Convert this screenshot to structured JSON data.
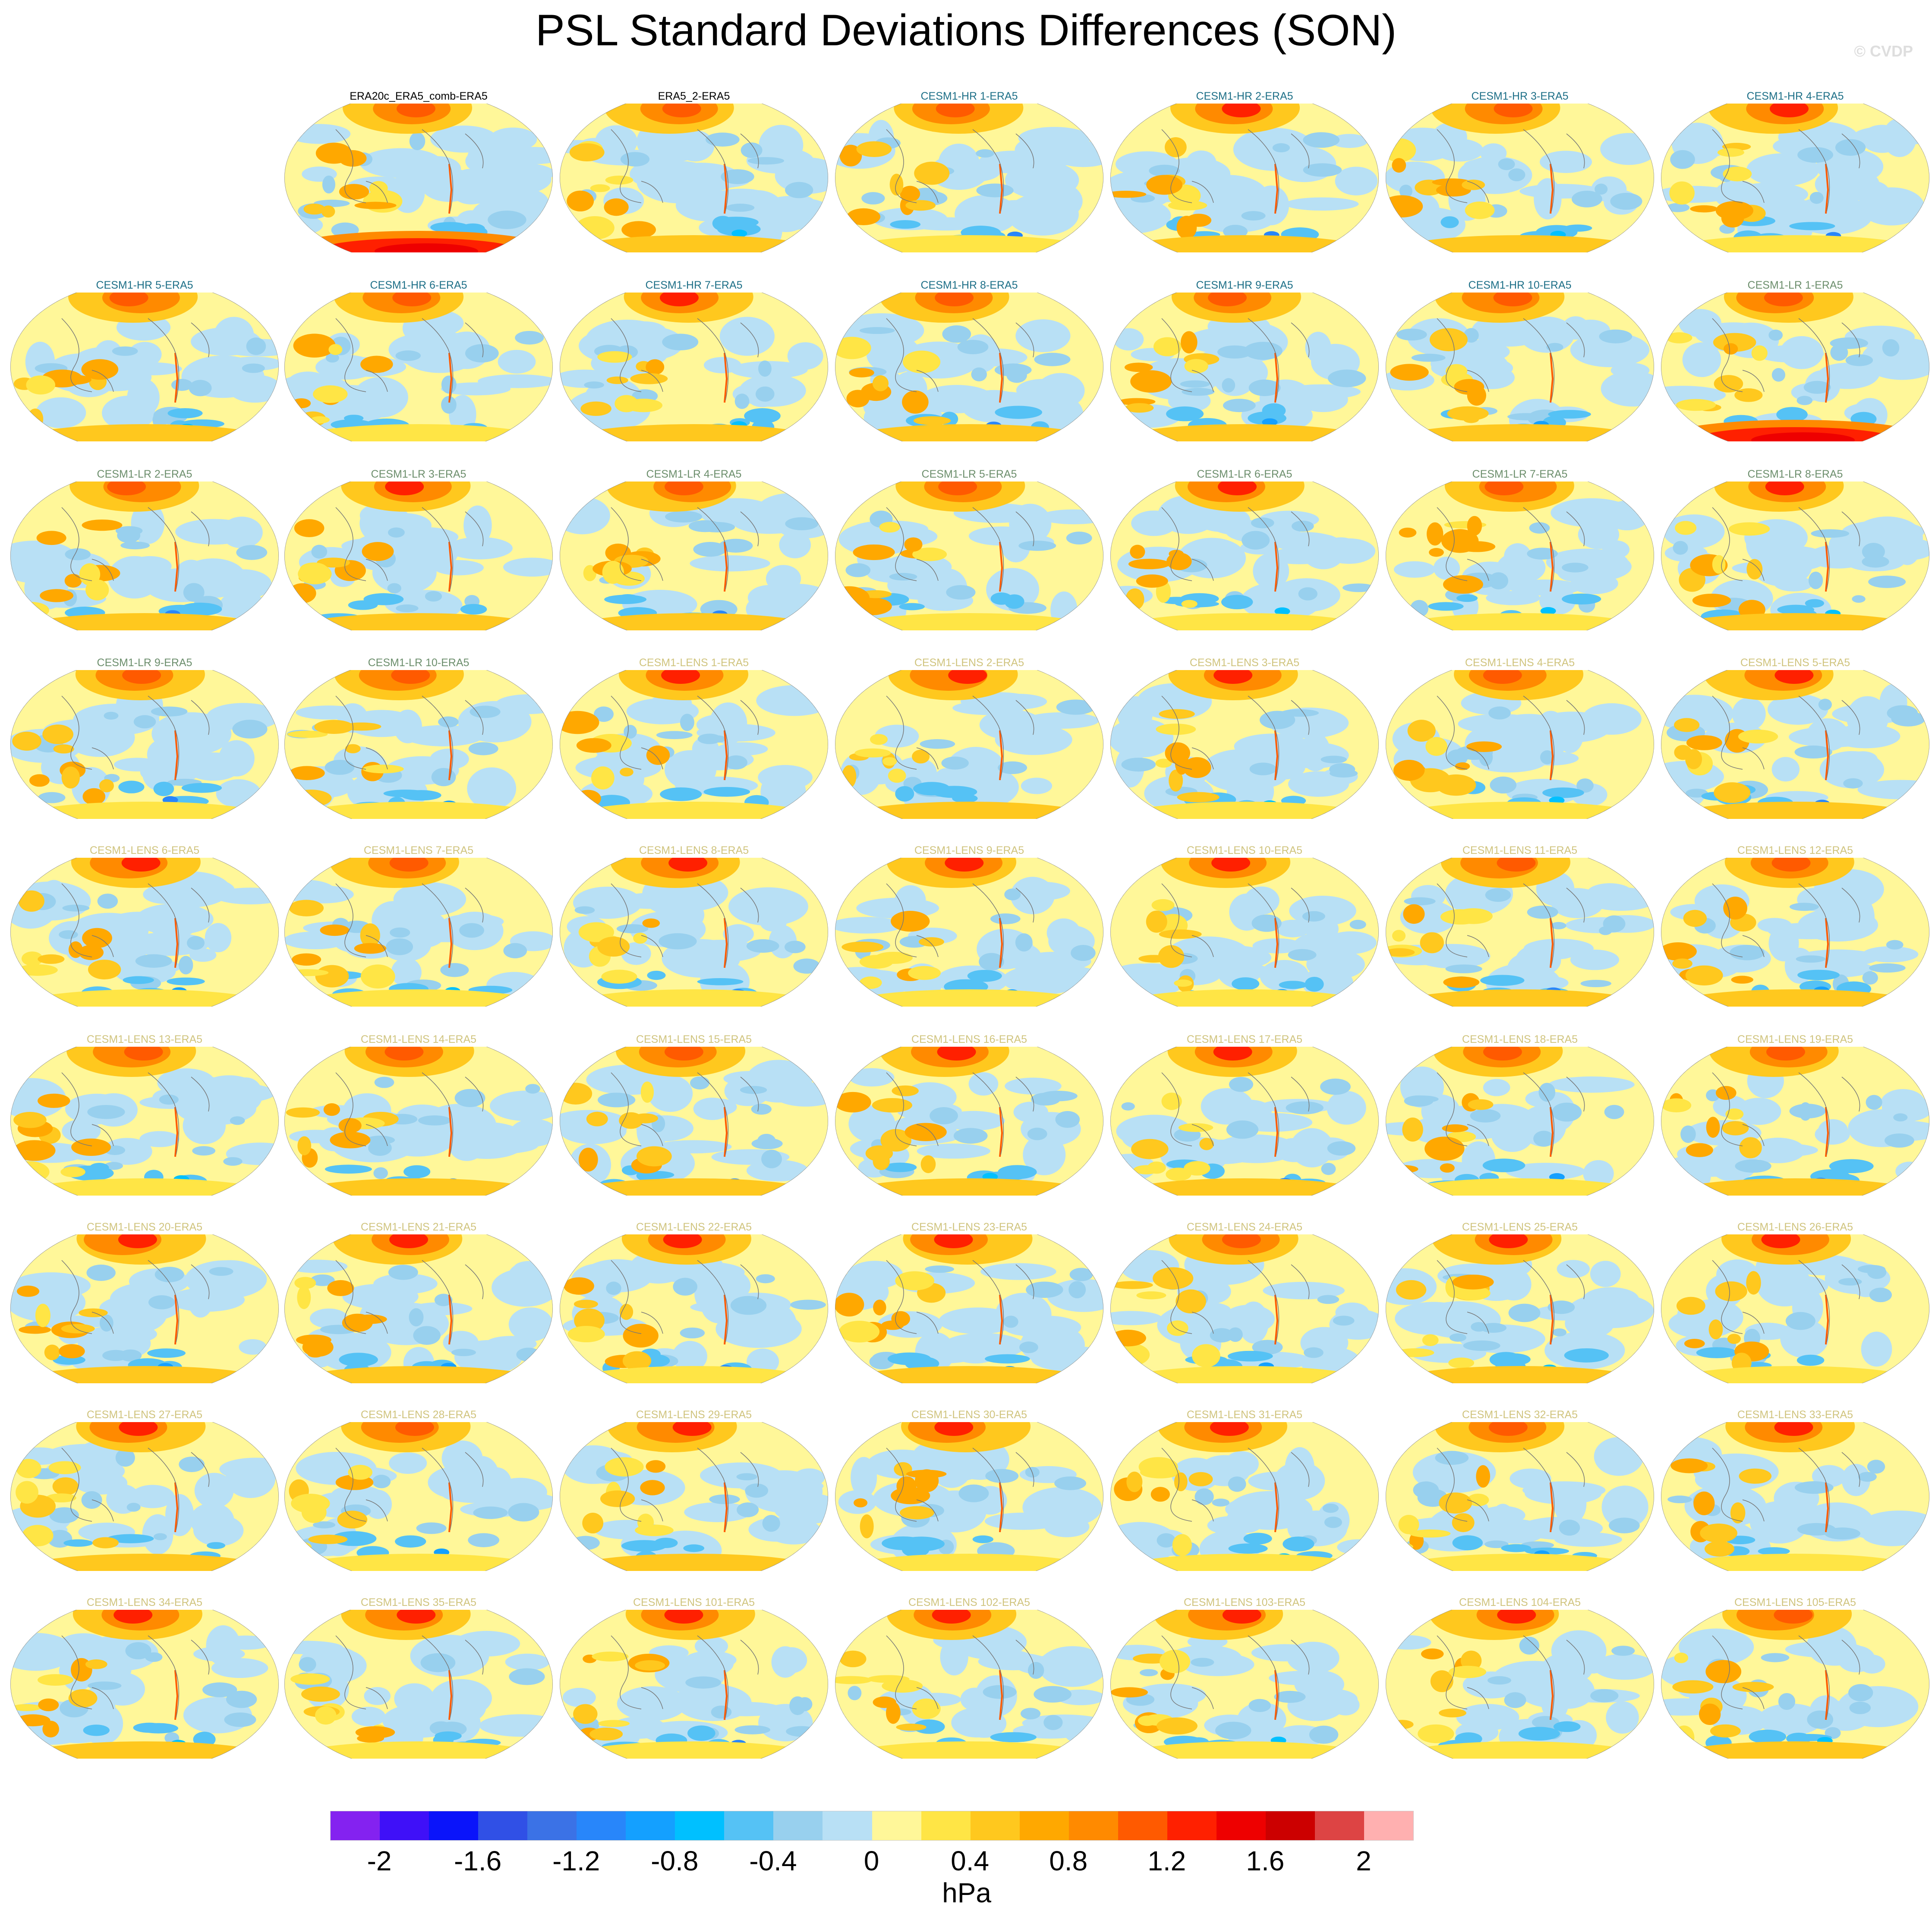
{
  "title": "PSL Standard Deviations Differences (SON)",
  "watermark": "© CVDP",
  "group_colors": {
    "obs": "#000000",
    "hr": "#1d6f87",
    "lr": "#6c8e6c",
    "lens": "#d0c47e"
  },
  "chart_data": {
    "type": "heatmap",
    "title": "PSL Standard Deviations Differences (SON)",
    "projection": "Robinson global maps, 7-column panel grid",
    "colorbar": {
      "unit": "hPa",
      "levels": [
        -2.2,
        -2.0,
        -1.8,
        -1.6,
        -1.4,
        -1.2,
        -1.0,
        -0.8,
        -0.6,
        -0.4,
        -0.2,
        0,
        0.2,
        0.4,
        0.6,
        0.8,
        1.0,
        1.2,
        1.4,
        1.6,
        1.8,
        2.0,
        2.2
      ],
      "tick_labels": [
        "-2",
        "-1.6",
        "-1.2",
        "-0.8",
        "-0.4",
        "0",
        "0.4",
        "0.8",
        "1.2",
        "1.6",
        "2"
      ],
      "colors": [
        "#8422f0",
        "#3f10f8",
        "#0a14fa",
        "#3050e6",
        "#3b72e6",
        "#2886fa",
        "#14a0ff",
        "#00c0ff",
        "#55c2f5",
        "#98d0ee",
        "#b8e0f5",
        "#fff799",
        "#ffe545",
        "#ffc81e",
        "#ffa800",
        "#ff8a00",
        "#ff5a00",
        "#ff2000",
        "#ee0000",
        "#cc0000",
        "#dd4444",
        "#ffb0b0"
      ]
    },
    "panels": [
      {
        "title": "ERA20c_ERA5_comb-ERA5",
        "group": "obs"
      },
      {
        "title": "ERA5_2-ERA5",
        "group": "obs"
      },
      {
        "title": "CESM1-HR 1-ERA5",
        "group": "hr"
      },
      {
        "title": "CESM1-HR 2-ERA5",
        "group": "hr"
      },
      {
        "title": "CESM1-HR 3-ERA5",
        "group": "hr"
      },
      {
        "title": "CESM1-HR 4-ERA5",
        "group": "hr"
      },
      {
        "title": "CESM1-HR 5-ERA5",
        "group": "hr"
      },
      {
        "title": "CESM1-HR 6-ERA5",
        "group": "hr"
      },
      {
        "title": "CESM1-HR 7-ERA5",
        "group": "hr"
      },
      {
        "title": "CESM1-HR 8-ERA5",
        "group": "hr"
      },
      {
        "title": "CESM1-HR 9-ERA5",
        "group": "hr"
      },
      {
        "title": "CESM1-HR 10-ERA5",
        "group": "hr"
      },
      {
        "title": "CESM1-LR 1-ERA5",
        "group": "lr"
      },
      {
        "title": "CESM1-LR 2-ERA5",
        "group": "lr"
      },
      {
        "title": "CESM1-LR 3-ERA5",
        "group": "lr"
      },
      {
        "title": "CESM1-LR 4-ERA5",
        "group": "lr"
      },
      {
        "title": "CESM1-LR 5-ERA5",
        "group": "lr"
      },
      {
        "title": "CESM1-LR 6-ERA5",
        "group": "lr"
      },
      {
        "title": "CESM1-LR 7-ERA5",
        "group": "lr"
      },
      {
        "title": "CESM1-LR 8-ERA5",
        "group": "lr"
      },
      {
        "title": "CESM1-LR 9-ERA5",
        "group": "lr"
      },
      {
        "title": "CESM1-LR 10-ERA5",
        "group": "lr"
      },
      {
        "title": "CESM1-LENS 1-ERA5",
        "group": "lens"
      },
      {
        "title": "CESM1-LENS 2-ERA5",
        "group": "lens"
      },
      {
        "title": "CESM1-LENS 3-ERA5",
        "group": "lens"
      },
      {
        "title": "CESM1-LENS 4-ERA5",
        "group": "lens"
      },
      {
        "title": "CESM1-LENS 5-ERA5",
        "group": "lens"
      },
      {
        "title": "CESM1-LENS 6-ERA5",
        "group": "lens"
      },
      {
        "title": "CESM1-LENS 7-ERA5",
        "group": "lens"
      },
      {
        "title": "CESM1-LENS 8-ERA5",
        "group": "lens"
      },
      {
        "title": "CESM1-LENS 9-ERA5",
        "group": "lens"
      },
      {
        "title": "CESM1-LENS 10-ERA5",
        "group": "lens"
      },
      {
        "title": "CESM1-LENS 11-ERA5",
        "group": "lens"
      },
      {
        "title": "CESM1-LENS 12-ERA5",
        "group": "lens"
      },
      {
        "title": "CESM1-LENS 13-ERA5",
        "group": "lens"
      },
      {
        "title": "CESM1-LENS 14-ERA5",
        "group": "lens"
      },
      {
        "title": "CESM1-LENS 15-ERA5",
        "group": "lens"
      },
      {
        "title": "CESM1-LENS 16-ERA5",
        "group": "lens"
      },
      {
        "title": "CESM1-LENS 17-ERA5",
        "group": "lens"
      },
      {
        "title": "CESM1-LENS 18-ERA5",
        "group": "lens"
      },
      {
        "title": "CESM1-LENS 19-ERA5",
        "group": "lens"
      },
      {
        "title": "CESM1-LENS 20-ERA5",
        "group": "lens"
      },
      {
        "title": "CESM1-LENS 21-ERA5",
        "group": "lens"
      },
      {
        "title": "CESM1-LENS 22-ERA5",
        "group": "lens"
      },
      {
        "title": "CESM1-LENS 23-ERA5",
        "group": "lens"
      },
      {
        "title": "CESM1-LENS 24-ERA5",
        "group": "lens"
      },
      {
        "title": "CESM1-LENS 25-ERA5",
        "group": "lens"
      },
      {
        "title": "CESM1-LENS 26-ERA5",
        "group": "lens"
      },
      {
        "title": "CESM1-LENS 27-ERA5",
        "group": "lens"
      },
      {
        "title": "CESM1-LENS 28-ERA5",
        "group": "lens"
      },
      {
        "title": "CESM1-LENS 29-ERA5",
        "group": "lens"
      },
      {
        "title": "CESM1-LENS 30-ERA5",
        "group": "lens"
      },
      {
        "title": "CESM1-LENS 31-ERA5",
        "group": "lens"
      },
      {
        "title": "CESM1-LENS 32-ERA5",
        "group": "lens"
      },
      {
        "title": "CESM1-LENS 33-ERA5",
        "group": "lens"
      },
      {
        "title": "CESM1-LENS 34-ERA5",
        "group": "lens"
      },
      {
        "title": "CESM1-LENS 35-ERA5",
        "group": "lens"
      },
      {
        "title": "CESM1-LENS 101-ERA5",
        "group": "lens"
      },
      {
        "title": "CESM1-LENS 102-ERA5",
        "group": "lens"
      },
      {
        "title": "CESM1-LENS 103-ERA5",
        "group": "lens"
      },
      {
        "title": "CESM1-LENS 104-ERA5",
        "group": "lens"
      },
      {
        "title": "CESM1-LENS 105-ERA5",
        "group": "lens"
      }
    ]
  }
}
